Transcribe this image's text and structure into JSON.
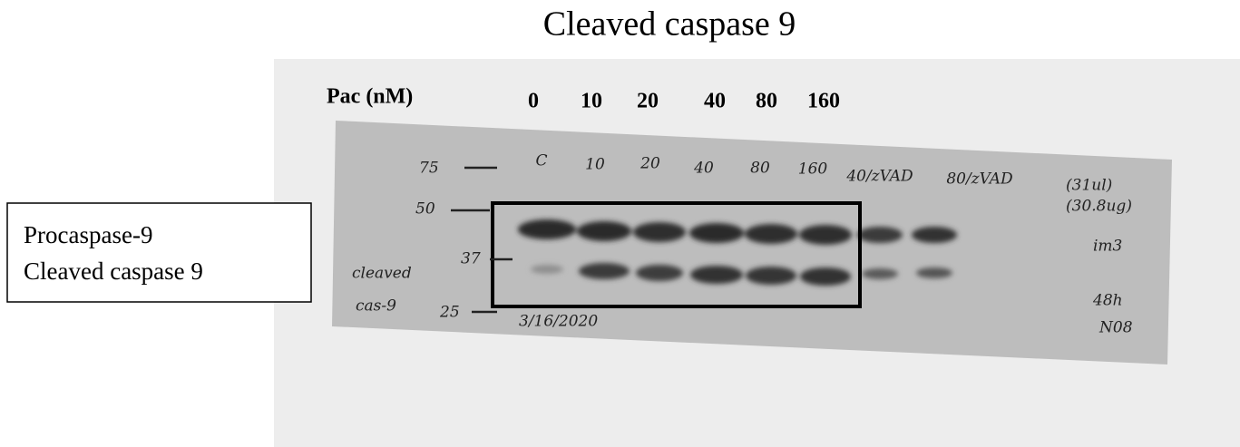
{
  "title": "Cleaved caspase 9",
  "legend_box": {
    "items": [
      "Procaspase-9",
      "Cleaved caspase 9"
    ]
  },
  "blot": {
    "header_label": "Pac (nM)",
    "doses": [
      "0",
      "10",
      "20",
      "40",
      "80",
      "160"
    ],
    "markers": [
      "75",
      "50",
      "37",
      "25"
    ],
    "lane_notes": [
      "C",
      "10",
      "20",
      "40",
      "80",
      "160",
      "40/zVAD",
      "80/zVAD"
    ],
    "side_notes": [
      "cleaved",
      "cas-9",
      "3/16/2020",
      "(31ul)",
      "(30.8ug)",
      "im3",
      "48h",
      "N08"
    ]
  }
}
